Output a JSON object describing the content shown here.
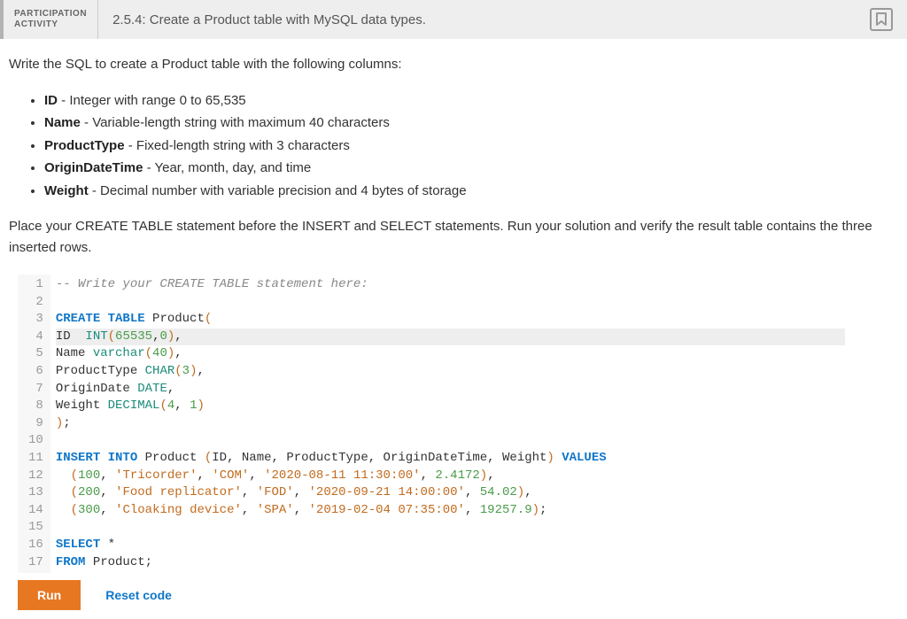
{
  "header": {
    "label_line1": "PARTICIPATION",
    "label_line2": "ACTIVITY",
    "title": "2.5.4: Create a Product table with MySQL data types."
  },
  "prompt": "Write the SQL to create a Product table with the following columns:",
  "columns": [
    {
      "name": "ID",
      "desc": " - Integer with range 0 to 65,535"
    },
    {
      "name": "Name",
      "desc": " - Variable-length string with maximum 40 characters"
    },
    {
      "name": "ProductType",
      "desc": " - Fixed-length string with 3 characters"
    },
    {
      "name": "OriginDateTime",
      "desc": " - Year, month, day, and time"
    },
    {
      "name": "Weight",
      "desc": " - Decimal number with variable precision and 4 bytes of storage"
    }
  ],
  "instruction": "Place your CREATE TABLE statement before the INSERT and SELECT statements. Run your solution and verify the result table contains the three inserted rows.",
  "editor": {
    "highlighted_line": 4,
    "lines": [
      {
        "n": 1,
        "tokens": [
          {
            "t": "-- Write your CREATE TABLE statement here:",
            "c": "c-comment"
          }
        ]
      },
      {
        "n": 2,
        "tokens": []
      },
      {
        "n": 3,
        "tokens": [
          {
            "t": "CREATE TABLE",
            "c": "c-kw"
          },
          {
            "t": " Product",
            "c": "c-ident"
          },
          {
            "t": "(",
            "c": "c-paren"
          }
        ]
      },
      {
        "n": 4,
        "tokens": [
          {
            "t": "ID  ",
            "c": "c-ident"
          },
          {
            "t": "INT",
            "c": "c-type"
          },
          {
            "t": "(",
            "c": "c-paren"
          },
          {
            "t": "65535",
            "c": "c-num"
          },
          {
            "t": ",",
            "c": "c-punct"
          },
          {
            "t": "0",
            "c": "c-num"
          },
          {
            "t": ")",
            "c": "c-paren"
          },
          {
            "t": ",",
            "c": "c-punct"
          }
        ]
      },
      {
        "n": 5,
        "tokens": [
          {
            "t": "Name ",
            "c": "c-ident"
          },
          {
            "t": "varchar",
            "c": "c-type"
          },
          {
            "t": "(",
            "c": "c-paren"
          },
          {
            "t": "40",
            "c": "c-num"
          },
          {
            "t": ")",
            "c": "c-paren"
          },
          {
            "t": ",",
            "c": "c-punct"
          }
        ]
      },
      {
        "n": 6,
        "tokens": [
          {
            "t": "ProductType ",
            "c": "c-ident"
          },
          {
            "t": "CHAR",
            "c": "c-type"
          },
          {
            "t": "(",
            "c": "c-paren"
          },
          {
            "t": "3",
            "c": "c-num"
          },
          {
            "t": ")",
            "c": "c-paren"
          },
          {
            "t": ",",
            "c": "c-punct"
          }
        ]
      },
      {
        "n": 7,
        "tokens": [
          {
            "t": "OriginDate ",
            "c": "c-ident"
          },
          {
            "t": "DATE",
            "c": "c-type"
          },
          {
            "t": ",",
            "c": "c-punct"
          }
        ]
      },
      {
        "n": 8,
        "tokens": [
          {
            "t": "Weight ",
            "c": "c-ident"
          },
          {
            "t": "DECIMAL",
            "c": "c-type"
          },
          {
            "t": "(",
            "c": "c-paren"
          },
          {
            "t": "4",
            "c": "c-num"
          },
          {
            "t": ", ",
            "c": "c-punct"
          },
          {
            "t": "1",
            "c": "c-num"
          },
          {
            "t": ")",
            "c": "c-paren"
          }
        ]
      },
      {
        "n": 9,
        "tokens": [
          {
            "t": ")",
            "c": "c-paren"
          },
          {
            "t": ";",
            "c": "c-punct"
          }
        ]
      },
      {
        "n": 10,
        "tokens": []
      },
      {
        "n": 11,
        "tokens": [
          {
            "t": "INSERT INTO",
            "c": "c-kw"
          },
          {
            "t": " Product ",
            "c": "c-ident"
          },
          {
            "t": "(",
            "c": "c-paren"
          },
          {
            "t": "ID",
            "c": "c-ident"
          },
          {
            "t": ", ",
            "c": "c-punct"
          },
          {
            "t": "Name",
            "c": "c-ident"
          },
          {
            "t": ", ",
            "c": "c-punct"
          },
          {
            "t": "ProductType",
            "c": "c-ident"
          },
          {
            "t": ", ",
            "c": "c-punct"
          },
          {
            "t": "OriginDateTime",
            "c": "c-ident"
          },
          {
            "t": ", ",
            "c": "c-punct"
          },
          {
            "t": "Weight",
            "c": "c-ident"
          },
          {
            "t": ")",
            "c": "c-paren"
          },
          {
            "t": " ",
            "c": "c-punct"
          },
          {
            "t": "VALUES",
            "c": "c-kw"
          }
        ]
      },
      {
        "n": 12,
        "tokens": [
          {
            "t": "  ",
            "c": "c-punct"
          },
          {
            "t": "(",
            "c": "c-paren"
          },
          {
            "t": "100",
            "c": "c-num"
          },
          {
            "t": ", ",
            "c": "c-punct"
          },
          {
            "t": "'Tricorder'",
            "c": "c-str"
          },
          {
            "t": ", ",
            "c": "c-punct"
          },
          {
            "t": "'COM'",
            "c": "c-str"
          },
          {
            "t": ", ",
            "c": "c-punct"
          },
          {
            "t": "'2020-08-11 11:30:00'",
            "c": "c-str"
          },
          {
            "t": ", ",
            "c": "c-punct"
          },
          {
            "t": "2.4172",
            "c": "c-num"
          },
          {
            "t": ")",
            "c": "c-paren"
          },
          {
            "t": ",",
            "c": "c-punct"
          }
        ]
      },
      {
        "n": 13,
        "tokens": [
          {
            "t": "  ",
            "c": "c-punct"
          },
          {
            "t": "(",
            "c": "c-paren"
          },
          {
            "t": "200",
            "c": "c-num"
          },
          {
            "t": ", ",
            "c": "c-punct"
          },
          {
            "t": "'Food replicator'",
            "c": "c-str"
          },
          {
            "t": ", ",
            "c": "c-punct"
          },
          {
            "t": "'FOD'",
            "c": "c-str"
          },
          {
            "t": ", ",
            "c": "c-punct"
          },
          {
            "t": "'2020-09-21 14:00:00'",
            "c": "c-str"
          },
          {
            "t": ", ",
            "c": "c-punct"
          },
          {
            "t": "54.02",
            "c": "c-num"
          },
          {
            "t": ")",
            "c": "c-paren"
          },
          {
            "t": ",",
            "c": "c-punct"
          }
        ]
      },
      {
        "n": 14,
        "tokens": [
          {
            "t": "  ",
            "c": "c-punct"
          },
          {
            "t": "(",
            "c": "c-paren"
          },
          {
            "t": "300",
            "c": "c-num"
          },
          {
            "t": ", ",
            "c": "c-punct"
          },
          {
            "t": "'Cloaking device'",
            "c": "c-str"
          },
          {
            "t": ", ",
            "c": "c-punct"
          },
          {
            "t": "'SPA'",
            "c": "c-str"
          },
          {
            "t": ", ",
            "c": "c-punct"
          },
          {
            "t": "'2019-02-04 07:35:00'",
            "c": "c-str"
          },
          {
            "t": ", ",
            "c": "c-punct"
          },
          {
            "t": "19257.9",
            "c": "c-num"
          },
          {
            "t": ")",
            "c": "c-paren"
          },
          {
            "t": ";",
            "c": "c-punct"
          }
        ]
      },
      {
        "n": 15,
        "tokens": []
      },
      {
        "n": 16,
        "tokens": [
          {
            "t": "SELECT",
            "c": "c-kw"
          },
          {
            "t": " *",
            "c": "c-ident"
          }
        ]
      },
      {
        "n": 17,
        "tokens": [
          {
            "t": "FROM",
            "c": "c-kw"
          },
          {
            "t": " Product",
            "c": "c-ident"
          },
          {
            "t": ";",
            "c": "c-punct"
          }
        ]
      }
    ]
  },
  "buttons": {
    "run": "Run",
    "reset": "Reset code"
  },
  "colors": {
    "accent_orange": "#e87722",
    "link_blue": "#1077c9",
    "header_bg": "#eeeeee",
    "gutter_bg": "#f7f7f7"
  }
}
